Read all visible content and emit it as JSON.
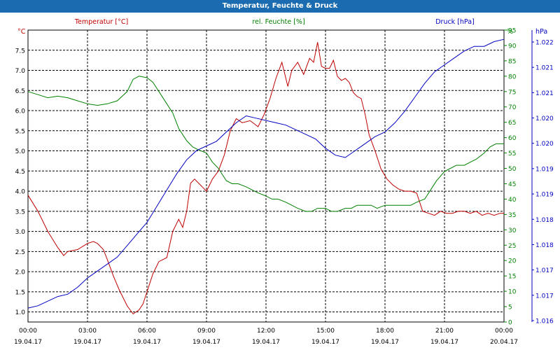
{
  "window": {
    "title": "Temperatur, Feuchte & Druck"
  },
  "chart_data": {
    "type": "line",
    "title": "Temperatur, Feuchte & Druck",
    "grid": true,
    "x_ticks": [
      {
        "h": 0,
        "time": "00:00",
        "date": "19.04.17"
      },
      {
        "h": 3,
        "time": "03:00",
        "date": "19.04.17"
      },
      {
        "h": 6,
        "time": "06:00",
        "date": "19.04.17"
      },
      {
        "h": 9,
        "time": "09:00",
        "date": "19.04.17"
      },
      {
        "h": 12,
        "time": "12:00",
        "date": "19.04.17"
      },
      {
        "h": 15,
        "time": "15:00",
        "date": "19.04.17"
      },
      {
        "h": 18,
        "time": "18:00",
        "date": "19.04.17"
      },
      {
        "h": 21,
        "time": "21:00",
        "date": "19.04.17"
      },
      {
        "h": 24,
        "time": "00:00",
        "date": "20.04.17"
      }
    ],
    "xlim": [
      0,
      24
    ],
    "axes": {
      "temperature": {
        "unit": "°C",
        "color": "#c00000",
        "range": [
          0.75,
          8.0
        ],
        "ticks": [
          "1.0",
          "1.5",
          "2.0",
          "2.5",
          "3.0",
          "3.5",
          "4.0",
          "4.5",
          "5.0",
          "5.5",
          "6.0",
          "6.5",
          "7.0",
          "7.5"
        ]
      },
      "humidity": {
        "unit": "%",
        "color": "#008000",
        "range": [
          0,
          95
        ],
        "ticks": [
          "0",
          "5",
          "10",
          "15",
          "20",
          "25",
          "30",
          "35",
          "40",
          "45",
          "50",
          "55",
          "60",
          "65",
          "70",
          "75",
          "80",
          "85",
          "90",
          "95"
        ]
      },
      "pressure": {
        "unit": "hPa",
        "color": "#0000c0",
        "range": [
          1016.0,
          1022.3
        ],
        "ticks": [
          "1.016",
          "1.017",
          "1.017",
          "1.018",
          "1.018",
          "1.019",
          "1.019",
          "1.020",
          "1.020",
          "1.021",
          "1.021",
          "1.022"
        ]
      }
    },
    "series": [
      {
        "name": "Temperatur [°C]",
        "axis": "temperature",
        "color": "#c00000",
        "x": [
          0,
          0.5,
          1,
          1.5,
          1.8,
          2,
          2.5,
          3,
          3.3,
          3.5,
          3.8,
          4,
          4.3,
          4.6,
          5,
          5.3,
          5.6,
          5.8,
          6,
          6.3,
          6.6,
          7,
          7.3,
          7.6,
          7.8,
          8,
          8.2,
          8.4,
          8.6,
          8.8,
          9,
          9.3,
          9.6,
          9.9,
          10.2,
          10.5,
          10.8,
          11.2,
          11.6,
          11.9,
          12.2,
          12.5,
          12.8,
          13.1,
          13.3,
          13.6,
          13.9,
          14.2,
          14.4,
          14.6,
          14.8,
          15,
          15.2,
          15.4,
          15.6,
          15.8,
          16,
          16.2,
          16.4,
          16.6,
          16.8,
          17,
          17.2,
          17.5,
          17.8,
          18.1,
          18.4,
          18.7,
          19,
          19.3,
          19.6,
          19.9,
          20.2,
          20.5,
          20.8,
          21.1,
          21.4,
          21.7,
          22,
          22.3,
          22.6,
          22.9,
          23.2,
          23.5,
          23.8,
          24
        ],
        "values": [
          3.9,
          3.5,
          3.0,
          2.6,
          2.4,
          2.5,
          2.55,
          2.7,
          2.75,
          2.7,
          2.55,
          2.3,
          1.9,
          1.55,
          1.15,
          0.95,
          1.05,
          1.2,
          1.5,
          1.95,
          2.25,
          2.35,
          3.0,
          3.3,
          3.1,
          3.5,
          4.2,
          4.3,
          4.2,
          4.1,
          4.0,
          4.3,
          4.5,
          4.9,
          5.5,
          5.8,
          5.7,
          5.75,
          5.6,
          5.9,
          6.3,
          6.8,
          7.2,
          6.6,
          7.0,
          7.2,
          6.9,
          7.3,
          7.2,
          7.7,
          7.1,
          7.05,
          7.05,
          7.25,
          6.85,
          6.75,
          6.8,
          6.7,
          6.45,
          6.35,
          6.3,
          5.9,
          5.4,
          5.0,
          4.55,
          4.3,
          4.15,
          4.05,
          4.0,
          4.0,
          3.95,
          3.5,
          3.45,
          3.4,
          3.5,
          3.45,
          3.45,
          3.5,
          3.5,
          3.45,
          3.5,
          3.4,
          3.45,
          3.4,
          3.45,
          3.45
        ]
      },
      {
        "name": "rel. Feuchte [%]",
        "axis": "humidity",
        "color": "#008000",
        "x": [
          0,
          0.5,
          1,
          1.5,
          2,
          2.5,
          3,
          3.5,
          4,
          4.5,
          5,
          5.3,
          5.6,
          6,
          6.3,
          6.6,
          7,
          7.3,
          7.6,
          8,
          8.3,
          8.6,
          9,
          9.3,
          9.6,
          10,
          10.3,
          10.6,
          11,
          11.3,
          11.6,
          12,
          12.3,
          12.6,
          13,
          13.3,
          13.6,
          14,
          14.3,
          14.6,
          15,
          15.3,
          15.6,
          16,
          16.3,
          16.6,
          17,
          17.3,
          17.6,
          18,
          18.3,
          18.6,
          19,
          19.3,
          19.6,
          20,
          20.3,
          20.6,
          21,
          21.3,
          21.6,
          22,
          22.3,
          22.6,
          23,
          23.3,
          23.6,
          24
        ],
        "values": [
          75,
          74,
          73,
          73.5,
          73,
          72,
          71,
          70.5,
          71,
          72,
          75,
          79,
          80,
          79.5,
          78,
          75,
          71,
          68,
          63,
          59,
          57,
          56,
          55,
          52,
          50,
          46,
          45,
          45,
          44,
          43,
          42,
          41,
          40,
          40,
          39,
          38,
          37,
          36,
          36,
          37,
          37,
          36,
          36,
          37,
          37,
          38,
          38,
          38,
          37,
          38,
          38,
          38,
          38,
          38,
          39,
          40,
          43,
          46,
          49,
          50,
          51,
          51,
          52,
          53,
          55,
          57,
          58,
          58
        ]
      },
      {
        "name": "Druck [hPa]",
        "axis": "pressure",
        "color": "#0000c0",
        "x": [
          0,
          0.5,
          1,
          1.5,
          2,
          2.5,
          3,
          3.5,
          4,
          4.5,
          5,
          5.5,
          6,
          6.5,
          7,
          7.5,
          8,
          8.5,
          9,
          9.5,
          10,
          10.5,
          11,
          11.5,
          12,
          12.5,
          13,
          13.5,
          14,
          14.5,
          15,
          15.5,
          16,
          16.5,
          17,
          17.5,
          18,
          18.5,
          19,
          19.5,
          20,
          20.5,
          21,
          21.5,
          22,
          22.5,
          23,
          23.5,
          24
        ],
        "values": [
          1016.3,
          1016.35,
          1016.45,
          1016.55,
          1016.6,
          1016.75,
          1016.95,
          1017.1,
          1017.25,
          1017.4,
          1017.65,
          1017.9,
          1018.15,
          1018.5,
          1018.85,
          1019.2,
          1019.5,
          1019.7,
          1019.8,
          1019.9,
          1020.1,
          1020.3,
          1020.45,
          1020.4,
          1020.35,
          1020.3,
          1020.25,
          1020.15,
          1020.05,
          1019.95,
          1019.75,
          1019.6,
          1019.55,
          1019.7,
          1019.85,
          1020.0,
          1020.1,
          1020.3,
          1020.55,
          1020.85,
          1021.15,
          1021.4,
          1021.55,
          1021.7,
          1021.85,
          1021.95,
          1021.95,
          1022.05,
          1022.1
        ]
      }
    ],
    "legend": [
      "Temperatur [°C]",
      "rel. Feuchte [%]",
      "Druck [hPa]"
    ]
  }
}
